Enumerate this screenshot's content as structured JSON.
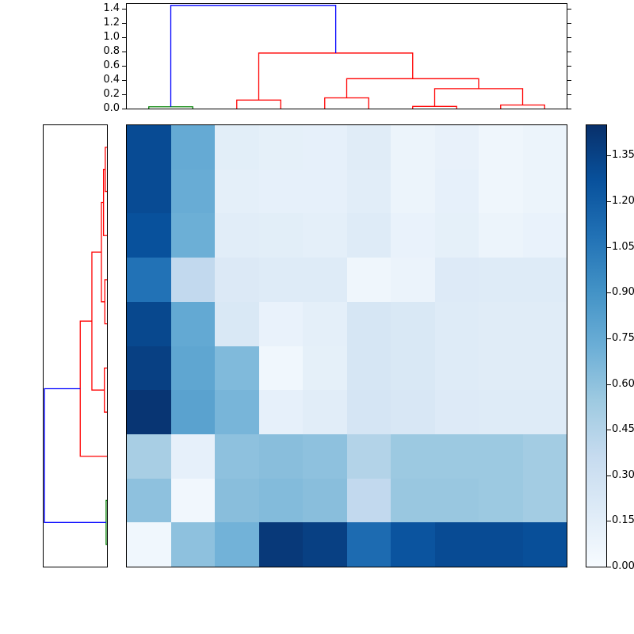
{
  "chart_data": {
    "type": "heatmap",
    "subtype": "clustered-heatmap-with-dendrograms",
    "title": "",
    "colormap": "Blues",
    "n_rows": 10,
    "n_cols": 10,
    "value_range": {
      "vmin": 0.0,
      "vmax": 1.45
    },
    "heatmap_values": [
      [
        1.3,
        0.75,
        0.15,
        0.13,
        0.12,
        0.17,
        0.08,
        0.11,
        0.06,
        0.08
      ],
      [
        1.3,
        0.74,
        0.14,
        0.12,
        0.12,
        0.16,
        0.08,
        0.12,
        0.06,
        0.08
      ],
      [
        1.27,
        0.72,
        0.16,
        0.15,
        0.14,
        0.18,
        0.1,
        0.13,
        0.08,
        0.1
      ],
      [
        1.08,
        0.38,
        0.2,
        0.18,
        0.18,
        0.06,
        0.09,
        0.19,
        0.18,
        0.18
      ],
      [
        1.32,
        0.76,
        0.22,
        0.1,
        0.14,
        0.24,
        0.22,
        0.18,
        0.17,
        0.17
      ],
      [
        1.36,
        0.78,
        0.65,
        0.05,
        0.13,
        0.24,
        0.22,
        0.18,
        0.17,
        0.17
      ],
      [
        1.42,
        0.8,
        0.68,
        0.12,
        0.16,
        0.25,
        0.23,
        0.19,
        0.18,
        0.18
      ],
      [
        0.5,
        0.12,
        0.6,
        0.62,
        0.6,
        0.45,
        0.55,
        0.55,
        0.55,
        0.52
      ],
      [
        0.6,
        0.04,
        0.62,
        0.64,
        0.62,
        0.38,
        0.56,
        0.56,
        0.55,
        0.52
      ],
      [
        0.05,
        0.6,
        0.7,
        1.4,
        1.36,
        1.12,
        1.25,
        1.3,
        1.3,
        1.28
      ]
    ],
    "colorbar": {
      "tick_labels": [
        "1.35",
        "1.20",
        "1.05",
        "0.90",
        "0.75",
        "0.60",
        "0.45",
        "0.30",
        "0.15",
        "0.00"
      ],
      "tick_values": [
        1.35,
        1.2,
        1.05,
        0.9,
        0.75,
        0.6,
        0.45,
        0.3,
        0.15,
        0.0
      ],
      "vmin": 0.0,
      "vmax": 1.45
    },
    "top_dendrogram": {
      "axis_tick_labels": [
        "1.4",
        "1.2",
        "1.0",
        "0.8",
        "0.6",
        "0.4",
        "0.2",
        "0.0"
      ],
      "axis_tick_values": [
        1.4,
        1.2,
        1.0,
        0.8,
        0.6,
        0.4,
        0.2,
        0.0
      ],
      "axis_max": 1.47,
      "links": [
        [
          0.5,
          0,
          1.5,
          0,
          0.025,
          "g"
        ],
        [
          2.5,
          0,
          3.5,
          0,
          0.12,
          "r"
        ],
        [
          4.5,
          0,
          5.5,
          0,
          0.15,
          "r"
        ],
        [
          6.5,
          0,
          7.5,
          0,
          0.03,
          "r"
        ],
        [
          8.5,
          0,
          9.5,
          0,
          0.05,
          "r"
        ],
        [
          7.0,
          0.03,
          9.0,
          0.05,
          0.28,
          "r"
        ],
        [
          5.0,
          0.15,
          8.0,
          0.28,
          0.42,
          "r"
        ],
        [
          3.0,
          0.12,
          6.5,
          0.42,
          0.78,
          "r"
        ],
        [
          1.0,
          0.025,
          4.75,
          0.78,
          1.45,
          "b"
        ]
      ]
    },
    "left_dendrogram": {
      "axis_max": 1.47,
      "links": [
        [
          0.5,
          0,
          1.5,
          0,
          0.04,
          "r"
        ],
        [
          1.0,
          0.04,
          2.5,
          0,
          0.08,
          "r"
        ],
        [
          3.5,
          0,
          4.5,
          0,
          0.05,
          "r"
        ],
        [
          1.75,
          0.08,
          4.0,
          0.05,
          0.13,
          "r"
        ],
        [
          5.5,
          0,
          6.5,
          0,
          0.06,
          "r"
        ],
        [
          2.875,
          0.13,
          6.0,
          0.06,
          0.35,
          "r"
        ],
        [
          4.4375,
          0.35,
          7.5,
          0,
          0.62,
          "r"
        ],
        [
          8.5,
          0,
          9.5,
          0,
          0.02,
          "g"
        ],
        [
          5.97,
          0.62,
          9.0,
          0.02,
          1.45,
          "b"
        ]
      ]
    },
    "link_colors": {
      "r": "#ff0000",
      "g": "#008000",
      "b": "#0000ff"
    }
  }
}
